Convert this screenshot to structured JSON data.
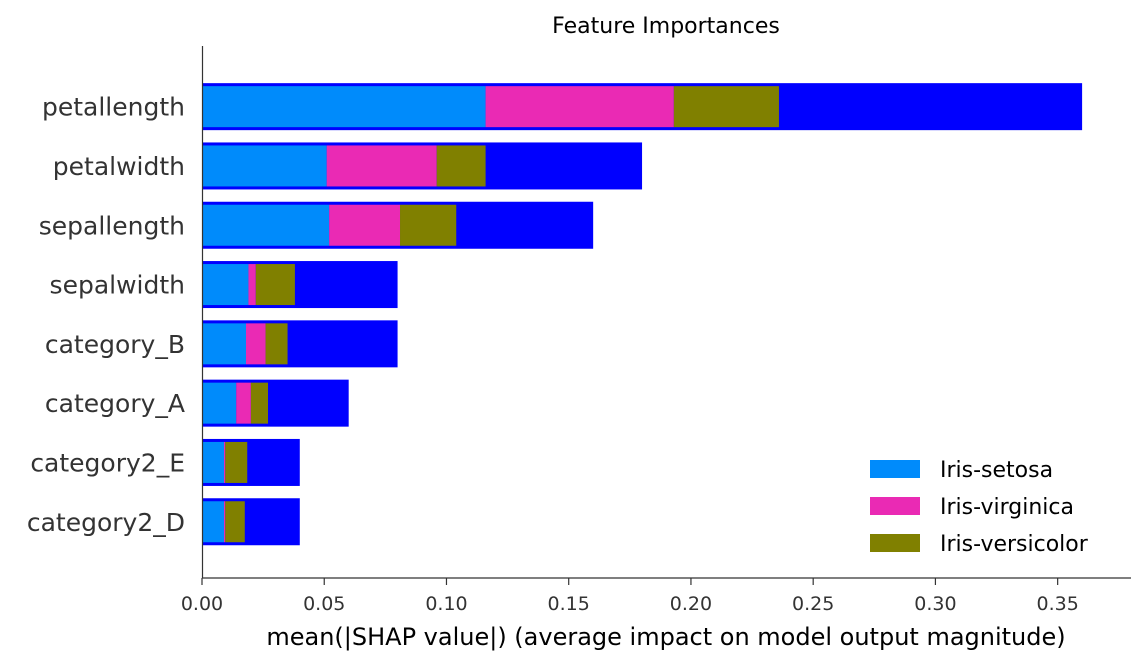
{
  "chart_data": {
    "type": "bar",
    "orientation": "horizontal",
    "stacked": true,
    "title": "Feature Importances",
    "xlabel": "mean(|SHAP value|) (average impact on model output magnitude)",
    "ylabel": "",
    "xlim": [
      0,
      0.38
    ],
    "xticks": [
      "0.00",
      "0.05",
      "0.10",
      "0.15",
      "0.20",
      "0.25",
      "0.30",
      "0.35"
    ],
    "xtick_values": [
      0,
      0.05,
      0.1,
      0.15,
      0.2,
      0.25,
      0.3,
      0.35
    ],
    "grid": false,
    "legend_position": "bottom-right",
    "categories": [
      "petallength",
      "petalwidth",
      "sepallength",
      "sepalwidth",
      "category_B",
      "category_A",
      "category2_E",
      "category2_D"
    ],
    "series": [
      {
        "name": "Iris-setosa",
        "color": "#008bfb",
        "values": [
          0.116,
          0.051,
          0.052,
          0.019,
          0.018,
          0.014,
          0.009,
          0.009
        ]
      },
      {
        "name": "Iris-virginica",
        "color": "#ea2ab4",
        "values": [
          0.077,
          0.045,
          0.029,
          0.003,
          0.008,
          0.006,
          0.0005,
          0.0005
        ]
      },
      {
        "name": "Iris-versicolor",
        "color": "#808000",
        "values": [
          0.043,
          0.02,
          0.023,
          0.016,
          0.009,
          0.007,
          0.009,
          0.008
        ]
      }
    ],
    "outer_bar": {
      "color": "#0000ff",
      "values": [
        0.36,
        0.18,
        0.16,
        0.08,
        0.08,
        0.06,
        0.04,
        0.04
      ]
    }
  }
}
